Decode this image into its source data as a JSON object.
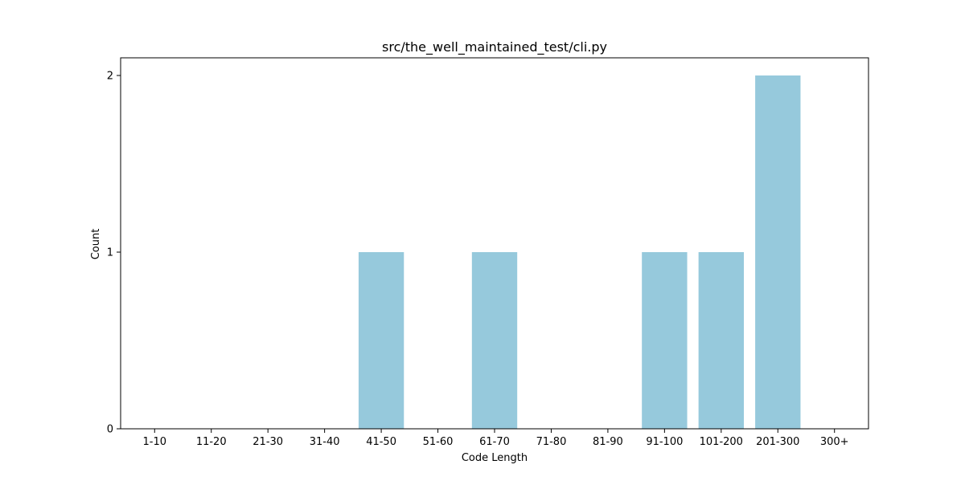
{
  "chart_data": {
    "type": "bar",
    "title": "src/the_well_maintained_test/cli.py",
    "xlabel": "Code Length",
    "ylabel": "Count",
    "categories": [
      "1-10",
      "11-20",
      "21-30",
      "31-40",
      "41-50",
      "51-60",
      "61-70",
      "71-80",
      "81-90",
      "91-100",
      "101-200",
      "201-300",
      "300+"
    ],
    "values": [
      0,
      0,
      0,
      0,
      1,
      0,
      1,
      0,
      0,
      1,
      1,
      2,
      0
    ],
    "ylim": [
      0,
      2.1
    ],
    "yticks": [
      0,
      1,
      2
    ],
    "grid": false,
    "bar_color": "#96c9dc"
  }
}
